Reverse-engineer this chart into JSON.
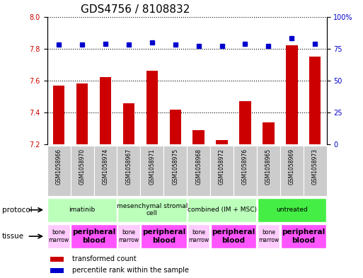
{
  "title": "GDS4756 / 8108832",
  "samples": [
    "GSM1058966",
    "GSM1058970",
    "GSM1058974",
    "GSM1058967",
    "GSM1058971",
    "GSM1058975",
    "GSM1058968",
    "GSM1058972",
    "GSM1058976",
    "GSM1058965",
    "GSM1058969",
    "GSM1058973"
  ],
  "bar_values": [
    7.57,
    7.58,
    7.62,
    7.46,
    7.66,
    7.42,
    7.29,
    7.23,
    7.47,
    7.34,
    7.82,
    7.75
  ],
  "dot_values": [
    78,
    78,
    79,
    78,
    80,
    78,
    77,
    77,
    79,
    77,
    83,
    79
  ],
  "ylim_left": [
    7.2,
    8.0
  ],
  "ylim_right": [
    0,
    100
  ],
  "yticks_left": [
    7.2,
    7.4,
    7.6,
    7.8,
    8.0
  ],
  "yticks_right": [
    0,
    25,
    50,
    75,
    100
  ],
  "bar_color": "#cc0000",
  "dot_color": "#0000cc",
  "protocol_groups": [
    {
      "label": "imatinib",
      "start": 0,
      "end": 3,
      "color": "#bbffbb"
    },
    {
      "label": "mesenchymal stromal\ncell",
      "start": 3,
      "end": 6,
      "color": "#bbffbb"
    },
    {
      "label": "combined (IM + MSC)",
      "start": 6,
      "end": 9,
      "color": "#bbffbb"
    },
    {
      "label": "untreated",
      "start": 9,
      "end": 12,
      "color": "#44ee44"
    }
  ],
  "tissue_groups": [
    {
      "label": "bone\nmarrow",
      "start": 0,
      "end": 1,
      "color": "#ffccff"
    },
    {
      "label": "peripheral\nblood",
      "start": 1,
      "end": 3,
      "color": "#ff55ff"
    },
    {
      "label": "bone\nmarrow",
      "start": 3,
      "end": 4,
      "color": "#ffccff"
    },
    {
      "label": "peripheral\nblood",
      "start": 4,
      "end": 6,
      "color": "#ff55ff"
    },
    {
      "label": "bone\nmarrow",
      "start": 6,
      "end": 7,
      "color": "#ffccff"
    },
    {
      "label": "peripheral\nblood",
      "start": 7,
      "end": 9,
      "color": "#ff55ff"
    },
    {
      "label": "bone\nmarrow",
      "start": 9,
      "end": 10,
      "color": "#ffccff"
    },
    {
      "label": "peripheral\nblood",
      "start": 10,
      "end": 12,
      "color": "#ff55ff"
    }
  ],
  "legend_labels": [
    "transformed count",
    "percentile rank within the sample"
  ],
  "protocol_label": "protocol",
  "tissue_label": "tissue",
  "title_fontsize": 11,
  "tick_fontsize": 7,
  "sample_fontsize": 5.5
}
